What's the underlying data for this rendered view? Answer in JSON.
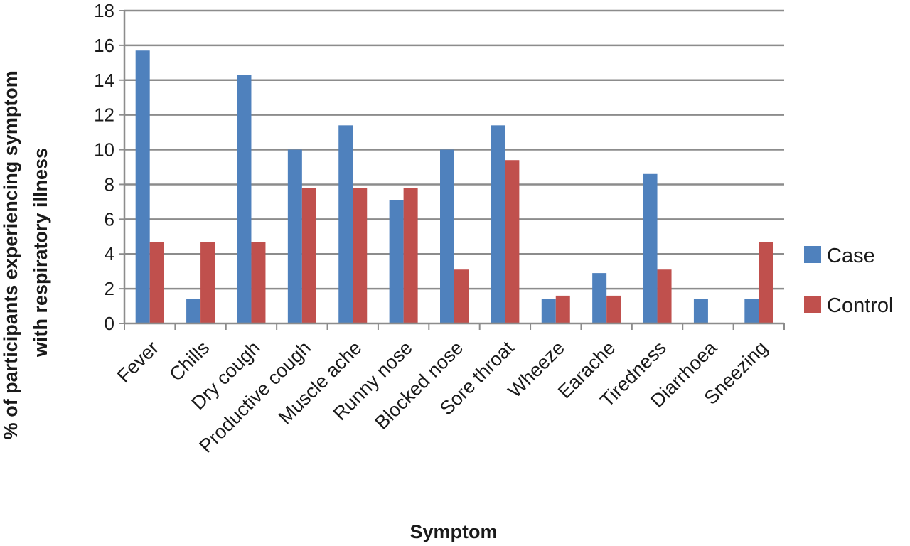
{
  "chart_data": {
    "type": "bar",
    "title": "",
    "xlabel": "Symptom",
    "ylabel_lines": [
      "% of participants experiencing symptom",
      "with respiratory illness"
    ],
    "ylim": [
      0,
      18
    ],
    "yticks": [
      0,
      2,
      4,
      6,
      8,
      10,
      12,
      14,
      16,
      18
    ],
    "grid": true,
    "legend_position": "right",
    "categories": [
      "Fever",
      "Chills",
      "Dry cough",
      "Productive cough",
      "Muscle ache",
      "Runny nose",
      "Blocked nose",
      "Sore throat",
      "Wheeze",
      "Earache",
      "Tiredness",
      "Diarrhoea",
      "Sneezing"
    ],
    "series": [
      {
        "name": "Case",
        "color": "#4F81BD",
        "values": [
          15.7,
          1.4,
          14.3,
          10.0,
          11.4,
          7.1,
          10.0,
          11.4,
          1.4,
          2.9,
          8.6,
          1.4,
          1.4
        ]
      },
      {
        "name": "Control",
        "color": "#C0504D",
        "values": [
          4.7,
          4.7,
          4.7,
          7.8,
          7.8,
          7.8,
          3.1,
          9.4,
          1.6,
          1.6,
          3.1,
          0,
          4.7
        ]
      }
    ]
  }
}
